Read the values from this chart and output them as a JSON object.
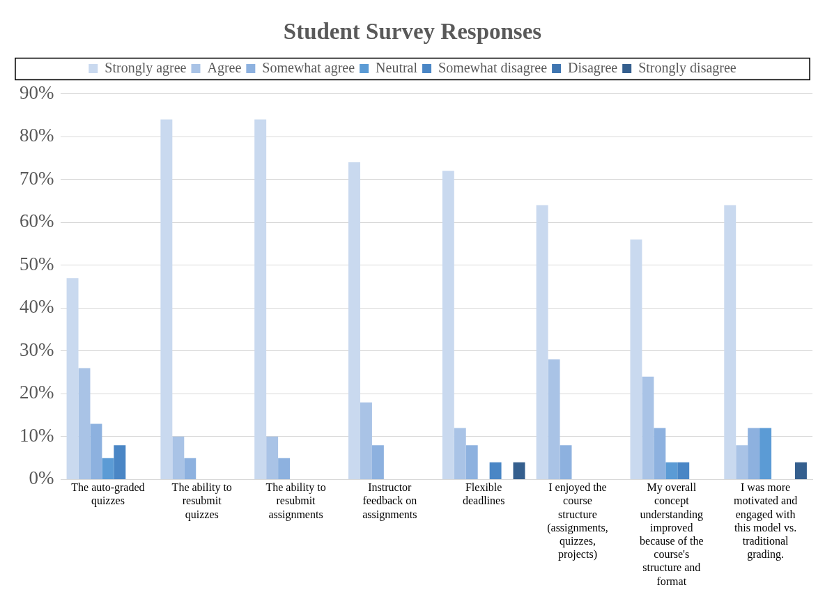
{
  "chart_data": {
    "type": "bar",
    "title": "Student Survey Responses",
    "categories": [
      "The auto-graded quizzes",
      "The ability to resubmit quizzes",
      "The ability to resubmit assignments",
      "Instructor feedback on assignments",
      "Flexible deadlines",
      "I enjoyed the course structure (assignments, quizzes, projects)",
      "My overall concept understanding improved because of the course's structure and format",
      "I was more motivated and engaged with this model vs. traditional grading."
    ],
    "series": [
      {
        "name": "Strongly agree",
        "color": "#c9d9ef",
        "values": [
          47,
          84,
          84,
          74,
          72,
          64,
          56,
          64
        ]
      },
      {
        "name": "Agree",
        "color": "#a9c3e6",
        "values": [
          26,
          10,
          10,
          18,
          12,
          28,
          24,
          8
        ]
      },
      {
        "name": "Somewhat agree",
        "color": "#8db1df",
        "values": [
          13,
          5,
          5,
          8,
          8,
          8,
          12,
          12
        ]
      },
      {
        "name": "Neutral",
        "color": "#5b9bd5",
        "values": [
          5,
          0,
          0,
          0,
          0,
          0,
          4,
          12
        ]
      },
      {
        "name": "Somewhat disagree",
        "color": "#4a86c5",
        "values": [
          8,
          0,
          0,
          0,
          4,
          0,
          4,
          0
        ]
      },
      {
        "name": "Disagree",
        "color": "#3f75b0",
        "values": [
          0,
          0,
          0,
          0,
          0,
          0,
          0,
          0
        ]
      },
      {
        "name": "Strongly disagree",
        "color": "#355f8e",
        "values": [
          0,
          0,
          0,
          0,
          4,
          0,
          0,
          4
        ]
      }
    ],
    "ylim": [
      0,
      90
    ],
    "yticks": [
      {
        "value": 0,
        "label": "0%"
      },
      {
        "value": 10,
        "label": "10%"
      },
      {
        "value": 20,
        "label": "20%"
      },
      {
        "value": 30,
        "label": "30%"
      },
      {
        "value": 40,
        "label": "40%"
      },
      {
        "value": 50,
        "label": "50%"
      },
      {
        "value": 60,
        "label": "60%"
      },
      {
        "value": 70,
        "label": "70%"
      },
      {
        "value": 80,
        "label": "80%"
      },
      {
        "value": 90,
        "label": "90%"
      }
    ],
    "grid": "y",
    "legend": "top"
  }
}
